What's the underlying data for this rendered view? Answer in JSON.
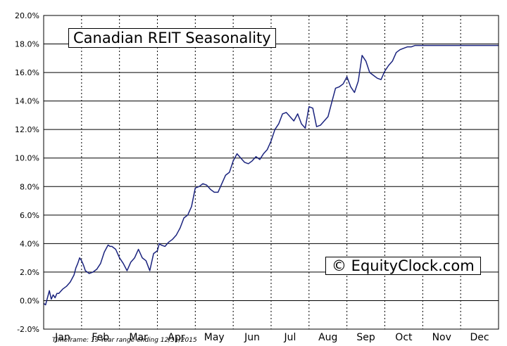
{
  "chart_data": {
    "type": "line",
    "title": "Canadian REIT Seasonality",
    "watermark": "© EquityClock.com",
    "footnote": "Timeframe: 19-Year range ending 12/31/2015",
    "xlabel": "",
    "ylabel": "",
    "months": [
      "Jan",
      "Feb",
      "Mar",
      "Apr",
      "May",
      "Jun",
      "Jul",
      "Aug",
      "Sep",
      "Oct",
      "Nov",
      "Dec"
    ],
    "y_ticks": [
      "20.0%",
      "18.0%",
      "16.0%",
      "14.0%",
      "12.0%",
      "10.0%",
      "8.0%",
      "6.0%",
      "4.0%",
      "2.0%",
      "0.0%",
      "-2.0%"
    ],
    "ylim": [
      -2,
      20
    ],
    "xlim": [
      0,
      12
    ],
    "grid": true,
    "series": [
      {
        "color": "#1a237e",
        "x": [
          0.0,
          0.05,
          0.1,
          0.15,
          0.2,
          0.25,
          0.3,
          0.35,
          0.4,
          0.5,
          0.6,
          0.7,
          0.8,
          0.85,
          0.9,
          0.95,
          1.0,
          1.05,
          1.1,
          1.15,
          1.2,
          1.3,
          1.4,
          1.5,
          1.6,
          1.7,
          1.75,
          1.8,
          1.9,
          2.0,
          2.1,
          2.2,
          2.3,
          2.4,
          2.5,
          2.6,
          2.7,
          2.8,
          2.9,
          3.0,
          3.05,
          3.1,
          3.2,
          3.3,
          3.4,
          3.5,
          3.6,
          3.7,
          3.8,
          3.9,
          4.0,
          4.1,
          4.2,
          4.3,
          4.4,
          4.5,
          4.6,
          4.7,
          4.8,
          4.9,
          5.0,
          5.1,
          5.2,
          5.3,
          5.4,
          5.5,
          5.6,
          5.7,
          5.8,
          5.9,
          6.0,
          6.1,
          6.2,
          6.3,
          6.4,
          6.5,
          6.6,
          6.7,
          6.8,
          6.9,
          7.0,
          7.1,
          7.2,
          7.3,
          7.4,
          7.5,
          7.6,
          7.7,
          7.8,
          7.9,
          8.0,
          8.1,
          8.2,
          8.3,
          8.4,
          8.5,
          8.6,
          8.7,
          8.8,
          8.9,
          9.0,
          9.1,
          9.2,
          9.3,
          9.4,
          9.5,
          9.6,
          9.7,
          9.8,
          9.9,
          10.0,
          10.1,
          10.2,
          10.3,
          10.4,
          10.5,
          10.55,
          10.6,
          10.7,
          10.8,
          10.9,
          11.0,
          11.1,
          11.2,
          11.3,
          11.4,
          11.5,
          11.6,
          11.7,
          11.8,
          11.9,
          12.0
        ],
        "values": [
          -0.2,
          -0.3,
          0.2,
          0.7,
          0.1,
          0.4,
          0.2,
          0.5,
          0.5,
          0.8,
          1.0,
          1.3,
          1.8,
          2.3,
          2.6,
          3.0,
          2.8,
          2.5,
          2.1,
          2.0,
          1.9,
          2.0,
          2.2,
          2.6,
          3.4,
          3.9,
          3.8,
          3.8,
          3.6,
          3.0,
          2.6,
          2.1,
          2.7,
          3.0,
          3.6,
          3.0,
          2.8,
          2.1,
          3.3,
          3.5,
          4.0,
          3.9,
          3.8,
          4.1,
          4.3,
          4.6,
          5.1,
          5.8,
          6.0,
          6.6,
          7.9,
          8.0,
          8.2,
          8.1,
          7.8,
          7.6,
          7.6,
          8.2,
          8.8,
          9.0,
          9.8,
          10.3,
          10.0,
          9.7,
          9.6,
          9.8,
          10.1,
          9.9,
          10.3,
          10.6,
          11.2,
          12.0,
          12.4,
          13.1,
          13.2,
          12.9,
          12.6,
          13.1,
          12.4,
          12.1,
          13.6,
          13.5,
          12.2,
          12.3,
          12.6,
          12.9,
          13.9,
          14.9,
          15.0,
          15.2,
          15.7,
          15.0,
          14.6,
          15.4,
          17.2,
          16.8,
          16.0,
          15.8,
          15.6,
          15.5,
          16.1,
          16.5,
          16.8,
          17.4,
          17.6,
          17.7,
          17.8,
          17.8,
          17.9,
          17.9,
          17.9,
          17.9,
          17.9,
          17.9,
          17.9,
          17.9,
          17.9,
          17.9,
          17.9,
          17.9,
          17.9,
          17.9,
          17.9,
          17.9,
          17.9,
          17.9,
          17.9,
          17.9,
          17.9,
          17.9,
          17.9,
          17.9
        ]
      }
    ]
  }
}
